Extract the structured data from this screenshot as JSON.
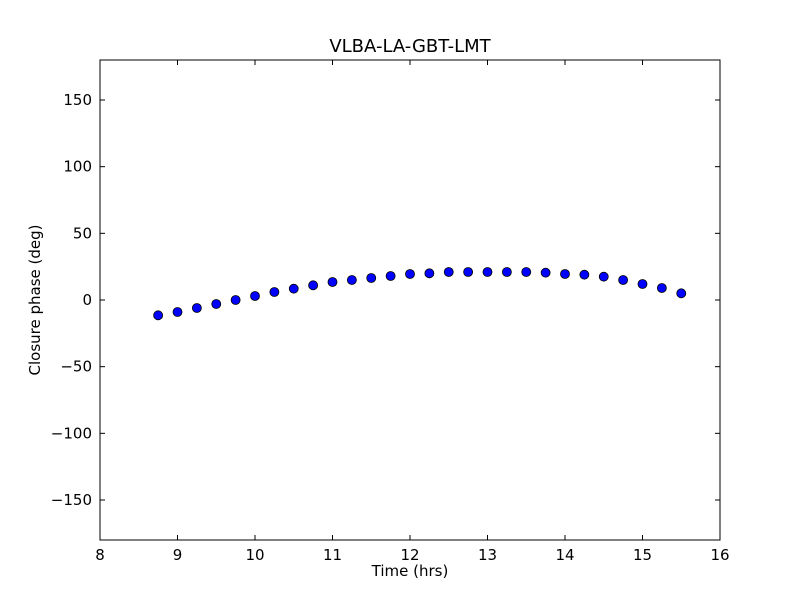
{
  "chart_data": {
    "type": "scatter",
    "title": "VLBA-LA-GBT-LMT",
    "xlabel": "Time (hrs)",
    "ylabel": "Closure phase (deg)",
    "xlim": [
      8,
      16
    ],
    "ylim": [
      -180,
      180
    ],
    "xticks": [
      8,
      9,
      10,
      11,
      12,
      13,
      14,
      15,
      16
    ],
    "yticks": [
      -150,
      -100,
      -50,
      0,
      50,
      100,
      150
    ],
    "xtick_labels": [
      "8",
      "9",
      "10",
      "11",
      "12",
      "13",
      "14",
      "15",
      "16"
    ],
    "ytick_labels": [
      "−150",
      "−100",
      "−50",
      "0",
      "50",
      "100",
      "150"
    ],
    "grid": false,
    "legend": false,
    "marker_color": "#0000ff",
    "marker_edge_color": "#000000",
    "series": [
      {
        "x": [
          8.75,
          9.0,
          9.25,
          9.5,
          9.75,
          10.0,
          10.25,
          10.5,
          10.75,
          11.0,
          11.25,
          11.5,
          11.75,
          12.0,
          12.25,
          12.5,
          12.75,
          13.0,
          13.25,
          13.5,
          13.75,
          14.0,
          14.25,
          14.5,
          14.75,
          15.0,
          15.25,
          15.5
        ],
        "y": [
          -11.5,
          -9.0,
          -6.0,
          -3.0,
          0.0,
          3.0,
          6.0,
          8.5,
          11.0,
          13.5,
          15.0,
          16.5,
          18.0,
          19.5,
          20.0,
          21.0,
          21.0,
          21.0,
          21.0,
          21.0,
          20.5,
          19.5,
          19.0,
          17.5,
          15.0,
          12.0,
          9.0,
          5.0
        ]
      }
    ]
  }
}
